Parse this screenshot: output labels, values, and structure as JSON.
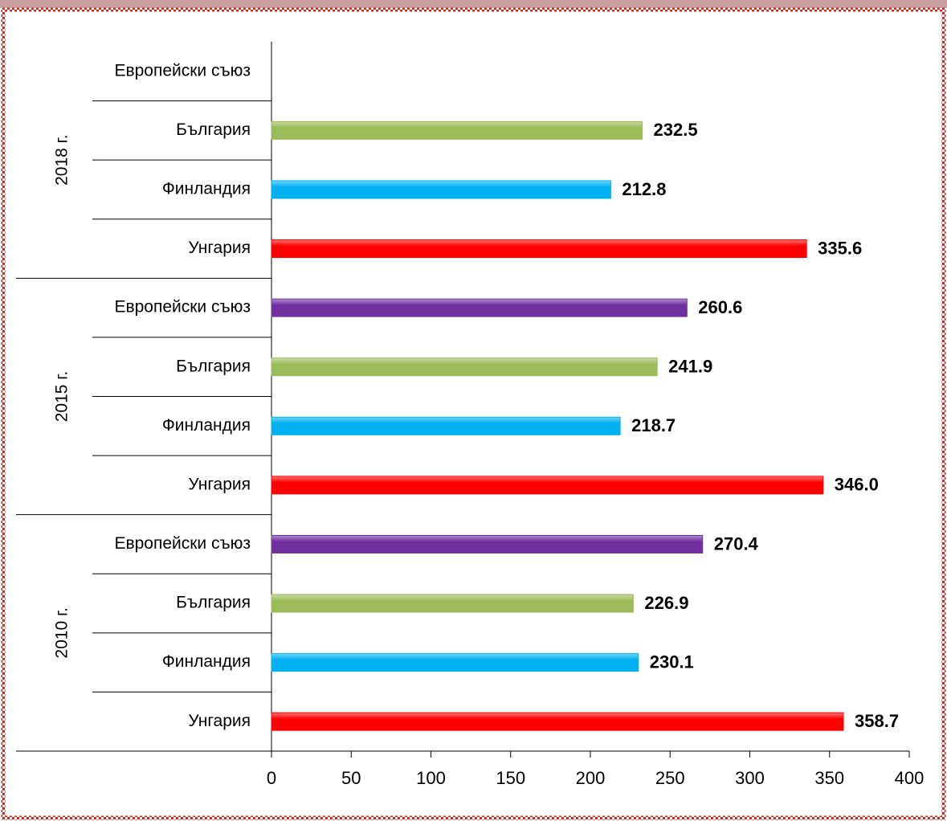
{
  "chart_data": {
    "type": "bar",
    "orientation": "horizontal",
    "groups": [
      "2010 г.",
      "2015 г.",
      "2018 г."
    ],
    "series": [
      {
        "name": "Унгария",
        "color": "#ff0000",
        "values": [
          358.7,
          346.0,
          335.6
        ],
        "value_labels": [
          "358.7",
          "346.0",
          "335.6"
        ]
      },
      {
        "name": "Финландия",
        "color": "#00b0f0",
        "values": [
          230.1,
          218.7,
          212.8
        ],
        "value_labels": [
          "230.1",
          "218.7",
          "212.8"
        ]
      },
      {
        "name": "България",
        "color": "#9bbb59",
        "values": [
          226.9,
          241.9,
          232.5
        ],
        "value_labels": [
          "226.9",
          "241.9",
          "232.5"
        ]
      },
      {
        "name": "Европейски съюз",
        "color": "#7030a0",
        "values": [
          270.4,
          260.6,
          null
        ],
        "value_labels": [
          "270.4",
          "260.6",
          null
        ]
      }
    ],
    "xlim": [
      0,
      400
    ],
    "xticks": [
      0,
      50,
      100,
      150,
      200,
      250,
      300,
      350,
      400
    ]
  }
}
